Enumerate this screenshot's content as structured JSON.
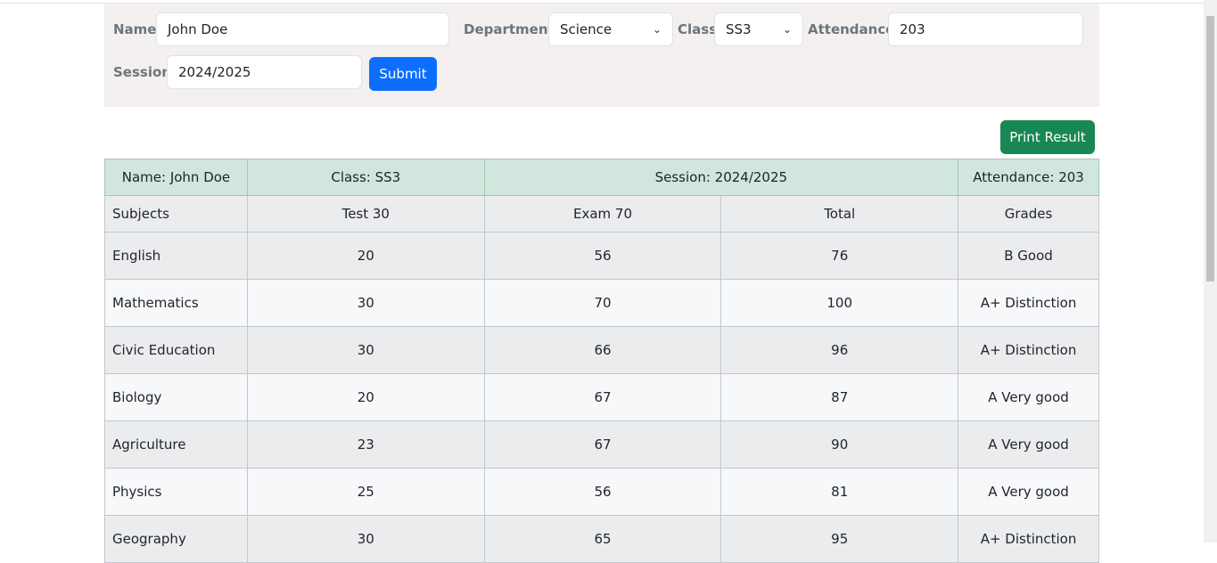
{
  "form": {
    "name_label": "Name",
    "name_value": "John Doe",
    "department_label": "Department",
    "department_value": "Science",
    "class_label": "Class",
    "class_value": "SS3",
    "attendance_label": "Attendance",
    "attendance_value": "203",
    "session_label": "Session",
    "session_value": "2024/2025",
    "submit_label": "Submit"
  },
  "print_label": "Print Result",
  "colors": {
    "primary": "#0d6efd",
    "success": "#198754",
    "header_bg": "#d1e7dd",
    "form_bg": "#f4f0ef"
  },
  "table": {
    "info": {
      "name": "Name: John Doe",
      "class": "Class: SS3",
      "session": "Session: 2024/2025",
      "attendance": "Attendance: 203"
    },
    "columns": [
      "Subjects",
      "Test 30",
      "Exam 70",
      "Total",
      "Grades"
    ],
    "rows": [
      [
        "English",
        "20",
        "56",
        "76",
        "B Good"
      ],
      [
        "Mathematics",
        "30",
        "70",
        "100",
        "A+ Distinction"
      ],
      [
        "Civic Education",
        "30",
        "66",
        "96",
        "A+ Distinction"
      ],
      [
        "Biology",
        "20",
        "67",
        "87",
        "A Very good"
      ],
      [
        "Agriculture",
        "23",
        "67",
        "90",
        "A Very good"
      ],
      [
        "Physics",
        "25",
        "56",
        "81",
        "A Very good"
      ],
      [
        "Geography",
        "30",
        "65",
        "95",
        "A+ Distinction"
      ]
    ]
  }
}
